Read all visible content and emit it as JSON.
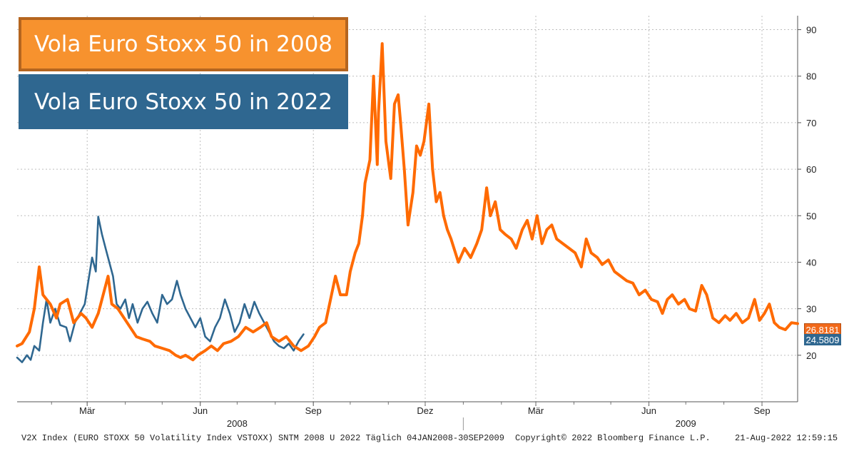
{
  "chart_data": {
    "type": "line",
    "ylim": [
      10,
      93
    ],
    "yticks": [
      20,
      30,
      40,
      50,
      60,
      70,
      80,
      90
    ],
    "x_range": [
      "2008-01-04",
      "2009-09-30"
    ],
    "month_labels": [
      {
        "date": "2008-03-01",
        "label": "Mär"
      },
      {
        "date": "2008-06-01",
        "label": "Jun"
      },
      {
        "date": "2008-09-01",
        "label": "Sep"
      },
      {
        "date": "2008-12-01",
        "label": "Dez"
      },
      {
        "date": "2009-03-01",
        "label": "Mär"
      },
      {
        "date": "2009-06-01",
        "label": "Jun"
      },
      {
        "date": "2009-09-01",
        "label": "Sep"
      }
    ],
    "year_labels": [
      {
        "date": "2008-07-01",
        "label": "2008"
      },
      {
        "date": "2009-07-01",
        "label": "2009"
      }
    ],
    "series": [
      {
        "name": "Vola Euro Stoxx 50 in 2008",
        "color": "#ff6a00",
        "last_value_label": "26.8181",
        "points": [
          [
            "2008-01-04",
            22
          ],
          [
            "2008-01-08",
            22.5
          ],
          [
            "2008-01-14",
            25
          ],
          [
            "2008-01-18",
            30
          ],
          [
            "2008-01-22",
            39
          ],
          [
            "2008-01-25",
            33
          ],
          [
            "2008-01-31",
            31
          ],
          [
            "2008-02-05",
            28
          ],
          [
            "2008-02-08",
            31
          ],
          [
            "2008-02-14",
            32
          ],
          [
            "2008-02-19",
            27
          ],
          [
            "2008-02-25",
            29
          ],
          [
            "2008-02-29",
            28
          ],
          [
            "2008-03-05",
            26
          ],
          [
            "2008-03-10",
            29
          ],
          [
            "2008-03-14",
            33
          ],
          [
            "2008-03-18",
            37
          ],
          [
            "2008-03-21",
            31
          ],
          [
            "2008-03-26",
            30
          ],
          [
            "2008-03-31",
            28
          ],
          [
            "2008-04-05",
            26
          ],
          [
            "2008-04-10",
            24
          ],
          [
            "2008-04-15",
            23.5
          ],
          [
            "2008-04-21",
            23
          ],
          [
            "2008-04-25",
            22
          ],
          [
            "2008-05-01",
            21.5
          ],
          [
            "2008-05-07",
            21
          ],
          [
            "2008-05-12",
            20
          ],
          [
            "2008-05-16",
            19.5
          ],
          [
            "2008-05-20",
            20
          ],
          [
            "2008-05-26",
            19
          ],
          [
            "2008-05-30",
            20
          ],
          [
            "2008-06-05",
            21
          ],
          [
            "2008-06-10",
            22
          ],
          [
            "2008-06-15",
            21
          ],
          [
            "2008-06-20",
            22.5
          ],
          [
            "2008-06-26",
            23
          ],
          [
            "2008-07-02",
            24
          ],
          [
            "2008-07-08",
            26
          ],
          [
            "2008-07-14",
            25
          ],
          [
            "2008-07-20",
            26
          ],
          [
            "2008-07-25",
            27
          ],
          [
            "2008-07-29",
            24
          ],
          [
            "2008-08-04",
            23
          ],
          [
            "2008-08-10",
            24
          ],
          [
            "2008-08-16",
            22
          ],
          [
            "2008-08-22",
            21
          ],
          [
            "2008-08-28",
            22
          ],
          [
            "2008-09-02",
            24
          ],
          [
            "2008-09-06",
            26
          ],
          [
            "2008-09-11",
            27
          ],
          [
            "2008-09-15",
            32
          ],
          [
            "2008-09-19",
            37
          ],
          [
            "2008-09-23",
            33
          ],
          [
            "2008-09-28",
            33
          ],
          [
            "2008-10-01",
            38
          ],
          [
            "2008-10-05",
            42
          ],
          [
            "2008-10-08",
            44
          ],
          [
            "2008-10-11",
            50
          ],
          [
            "2008-10-13",
            57
          ],
          [
            "2008-10-17",
            62
          ],
          [
            "2008-10-20",
            80
          ],
          [
            "2008-10-23",
            61
          ],
          [
            "2008-10-24",
            72
          ],
          [
            "2008-10-27",
            87
          ],
          [
            "2008-10-30",
            66
          ],
          [
            "2008-11-03",
            58
          ],
          [
            "2008-11-06",
            74
          ],
          [
            "2008-11-09",
            76
          ],
          [
            "2008-11-11",
            70
          ],
          [
            "2008-11-14",
            60
          ],
          [
            "2008-11-17",
            48
          ],
          [
            "2008-11-21",
            55
          ],
          [
            "2008-11-24",
            65
          ],
          [
            "2008-11-27",
            63
          ],
          [
            "2008-11-30",
            66
          ],
          [
            "2008-12-04",
            74
          ],
          [
            "2008-12-07",
            60
          ],
          [
            "2008-12-10",
            53
          ],
          [
            "2008-12-13",
            55
          ],
          [
            "2008-12-16",
            50
          ],
          [
            "2008-12-19",
            47
          ],
          [
            "2008-12-22",
            45
          ],
          [
            "2008-12-28",
            40
          ],
          [
            "2009-01-02",
            43
          ],
          [
            "2009-01-07",
            41
          ],
          [
            "2009-01-12",
            44
          ],
          [
            "2009-01-16",
            47
          ],
          [
            "2009-01-20",
            56
          ],
          [
            "2009-01-23",
            50
          ],
          [
            "2009-01-27",
            53
          ],
          [
            "2009-01-31",
            47
          ],
          [
            "2009-02-04",
            46
          ],
          [
            "2009-02-09",
            45
          ],
          [
            "2009-02-13",
            43
          ],
          [
            "2009-02-18",
            47
          ],
          [
            "2009-02-22",
            49
          ],
          [
            "2009-02-26",
            45
          ],
          [
            "2009-03-02",
            50
          ],
          [
            "2009-03-06",
            44
          ],
          [
            "2009-03-10",
            47
          ],
          [
            "2009-03-14",
            48
          ],
          [
            "2009-03-18",
            45
          ],
          [
            "2009-03-23",
            44
          ],
          [
            "2009-03-28",
            43
          ],
          [
            "2009-04-02",
            42
          ],
          [
            "2009-04-07",
            39
          ],
          [
            "2009-04-11",
            45
          ],
          [
            "2009-04-15",
            42
          ],
          [
            "2009-04-20",
            41
          ],
          [
            "2009-04-24",
            39.5
          ],
          [
            "2009-04-29",
            40.5
          ],
          [
            "2009-05-04",
            38
          ],
          [
            "2009-05-09",
            37
          ],
          [
            "2009-05-14",
            36
          ],
          [
            "2009-05-19",
            35.5
          ],
          [
            "2009-05-24",
            33
          ],
          [
            "2009-05-29",
            34
          ],
          [
            "2009-06-03",
            32
          ],
          [
            "2009-06-08",
            31.5
          ],
          [
            "2009-06-12",
            29
          ],
          [
            "2009-06-16",
            32
          ],
          [
            "2009-06-20",
            33
          ],
          [
            "2009-06-25",
            31
          ],
          [
            "2009-06-30",
            32
          ],
          [
            "2009-07-04",
            30
          ],
          [
            "2009-07-09",
            29.5
          ],
          [
            "2009-07-14",
            35
          ],
          [
            "2009-07-18",
            33
          ],
          [
            "2009-07-23",
            28
          ],
          [
            "2009-07-28",
            27
          ],
          [
            "2009-08-02",
            28.5
          ],
          [
            "2009-08-06",
            27.5
          ],
          [
            "2009-08-11",
            29
          ],
          [
            "2009-08-16",
            27
          ],
          [
            "2009-08-21",
            28
          ],
          [
            "2009-08-26",
            32
          ],
          [
            "2009-08-30",
            27.5
          ],
          [
            "2009-09-03",
            29
          ],
          [
            "2009-09-07",
            31
          ],
          [
            "2009-09-11",
            27
          ],
          [
            "2009-09-15",
            26
          ],
          [
            "2009-09-20",
            25.5
          ],
          [
            "2009-09-25",
            27
          ],
          [
            "2009-09-30",
            26.8
          ]
        ]
      },
      {
        "name": "Vola Euro Stoxx 50 in 2022",
        "color": "#2f6790",
        "last_value_label": "24.5809",
        "points": [
          [
            "2008-01-04",
            19.5
          ],
          [
            "2008-01-08",
            18.5
          ],
          [
            "2008-01-12",
            20
          ],
          [
            "2008-01-15",
            19
          ],
          [
            "2008-01-18",
            22
          ],
          [
            "2008-01-22",
            21
          ],
          [
            "2008-01-25",
            27
          ],
          [
            "2008-01-28",
            32
          ],
          [
            "2008-01-31",
            27
          ],
          [
            "2008-02-04",
            30
          ],
          [
            "2008-02-08",
            26.5
          ],
          [
            "2008-02-13",
            26
          ],
          [
            "2008-02-16",
            23
          ],
          [
            "2008-02-20",
            27
          ],
          [
            "2008-02-24",
            29
          ],
          [
            "2008-02-28",
            31
          ],
          [
            "2008-03-02",
            36
          ],
          [
            "2008-03-05",
            41
          ],
          [
            "2008-03-08",
            38
          ],
          [
            "2008-03-10",
            49.8
          ],
          [
            "2008-03-13",
            46
          ],
          [
            "2008-03-16",
            43
          ],
          [
            "2008-03-19",
            40
          ],
          [
            "2008-03-22",
            37
          ],
          [
            "2008-03-25",
            31
          ],
          [
            "2008-03-28",
            30
          ],
          [
            "2008-04-01",
            32
          ],
          [
            "2008-04-04",
            28
          ],
          [
            "2008-04-07",
            31
          ],
          [
            "2008-04-11",
            27
          ],
          [
            "2008-04-15",
            30
          ],
          [
            "2008-04-19",
            31.5
          ],
          [
            "2008-04-23",
            29
          ],
          [
            "2008-04-27",
            27
          ],
          [
            "2008-05-01",
            33
          ],
          [
            "2008-05-05",
            31
          ],
          [
            "2008-05-09",
            32
          ],
          [
            "2008-05-13",
            36
          ],
          [
            "2008-05-16",
            33
          ],
          [
            "2008-05-20",
            30
          ],
          [
            "2008-05-24",
            28
          ],
          [
            "2008-05-28",
            26
          ],
          [
            "2008-06-01",
            28
          ],
          [
            "2008-06-05",
            24
          ],
          [
            "2008-06-09",
            23
          ],
          [
            "2008-06-13",
            26
          ],
          [
            "2008-06-17",
            28
          ],
          [
            "2008-06-21",
            32
          ],
          [
            "2008-06-25",
            29
          ],
          [
            "2008-06-29",
            25
          ],
          [
            "2008-07-03",
            27
          ],
          [
            "2008-07-07",
            31
          ],
          [
            "2008-07-11",
            28
          ],
          [
            "2008-07-15",
            31.5
          ],
          [
            "2008-07-19",
            29
          ],
          [
            "2008-07-23",
            27
          ],
          [
            "2008-07-27",
            25
          ],
          [
            "2008-07-31",
            23
          ],
          [
            "2008-08-04",
            22
          ],
          [
            "2008-08-08",
            21.5
          ],
          [
            "2008-08-12",
            22.5
          ],
          [
            "2008-08-16",
            21
          ],
          [
            "2008-08-20",
            23
          ],
          [
            "2008-08-24",
            24.5
          ]
        ]
      }
    ]
  },
  "legend": {
    "label_2008": "Vola Euro Stoxx 50 in 2008",
    "label_2022": "Vola Euro Stoxx 50 in 2022"
  },
  "footer": {
    "left": "V2X Index (EURO STOXX 50 Volatility Index VSTOXX) SNTM 2008 U 2022  Täglich 04JAN2008-30SEP2009",
    "center": "Copyright© 2022 Bloomberg Finance L.P.",
    "right": "21-Aug-2022 12:59:15"
  }
}
